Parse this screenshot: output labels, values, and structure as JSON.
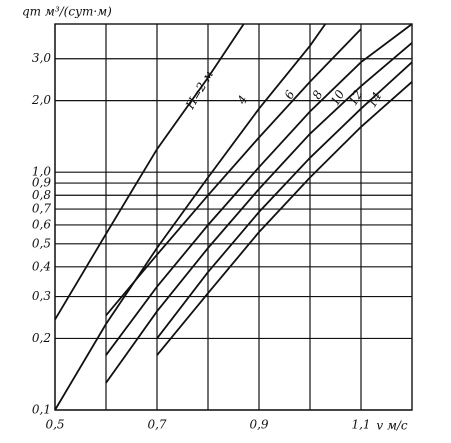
{
  "chart_data": {
    "type": "line",
    "log_y": true,
    "grid": true,
    "y_label": "qт м³/(сут·м)",
    "x_label": "v м/с",
    "xlim": [
      0.5,
      1.2
    ],
    "ylim": [
      0.1,
      4.2
    ],
    "xticks": [
      {
        "value": 0.5,
        "label": "0,5"
      },
      {
        "value": 0.6,
        "label": null
      },
      {
        "value": 0.7,
        "label": "0,7"
      },
      {
        "value": 0.8,
        "label": null
      },
      {
        "value": 0.9,
        "label": "0,9"
      },
      {
        "value": 1.0,
        "label": null
      },
      {
        "value": 1.1,
        "label": "1,1"
      }
    ],
    "yticks": [
      {
        "value": 0.1,
        "label": "0,1"
      },
      {
        "value": 0.2,
        "label": "0,2"
      },
      {
        "value": 0.3,
        "label": "0,3"
      },
      {
        "value": 0.4,
        "label": "0,4"
      },
      {
        "value": 0.5,
        "label": "0,5"
      },
      {
        "value": 0.6,
        "label": "0,6"
      },
      {
        "value": 0.7,
        "label": "0,7"
      },
      {
        "value": 0.8,
        "label": "0,8"
      },
      {
        "value": 0.9,
        "label": "0,9"
      },
      {
        "value": 1.0,
        "label": "1,0"
      },
      {
        "value": 2.0,
        "label": "2,0"
      },
      {
        "value": 3.0,
        "label": "3,0"
      }
    ],
    "series": [
      {
        "name": "H=2 м",
        "color": "#111111",
        "x": [
          0.5,
          0.6,
          0.7,
          0.8,
          0.87
        ],
        "values": [
          0.24,
          0.55,
          1.25,
          2.5,
          4.2
        ]
      },
      {
        "name": "4",
        "color": "#111111",
        "x": [
          0.5,
          0.6,
          0.7,
          0.8,
          0.9,
          1.0,
          1.03
        ],
        "values": [
          0.1,
          0.23,
          0.48,
          0.95,
          1.85,
          3.4,
          4.2
        ]
      },
      {
        "name": "6",
        "color": "#111111",
        "x": [
          0.6,
          0.7,
          0.8,
          0.9,
          1.0,
          1.1
        ],
        "values": [
          0.25,
          0.45,
          0.8,
          1.4,
          2.4,
          4.0
        ]
      },
      {
        "name": "8",
        "color": "#111111",
        "x": [
          0.6,
          0.7,
          0.8,
          0.9,
          1.0,
          1.1,
          1.2
        ],
        "values": [
          0.17,
          0.33,
          0.6,
          1.05,
          1.8,
          2.9,
          4.2
        ]
      },
      {
        "name": "10",
        "color": "#111111",
        "x": [
          0.6,
          0.7,
          0.8,
          0.9,
          1.0,
          1.1,
          1.2
        ],
        "values": [
          0.13,
          0.26,
          0.48,
          0.85,
          1.45,
          2.3,
          3.5
        ]
      },
      {
        "name": "12",
        "color": "#111111",
        "x": [
          0.7,
          0.8,
          0.9,
          1.0,
          1.1,
          1.2
        ],
        "values": [
          0.2,
          0.38,
          0.68,
          1.15,
          1.85,
          2.9
        ]
      },
      {
        "name": "14",
        "color": "#111111",
        "x": [
          0.7,
          0.8,
          0.9,
          1.0,
          1.1,
          1.2
        ],
        "values": [
          0.17,
          0.31,
          0.56,
          0.95,
          1.55,
          2.4
        ]
      }
    ]
  }
}
